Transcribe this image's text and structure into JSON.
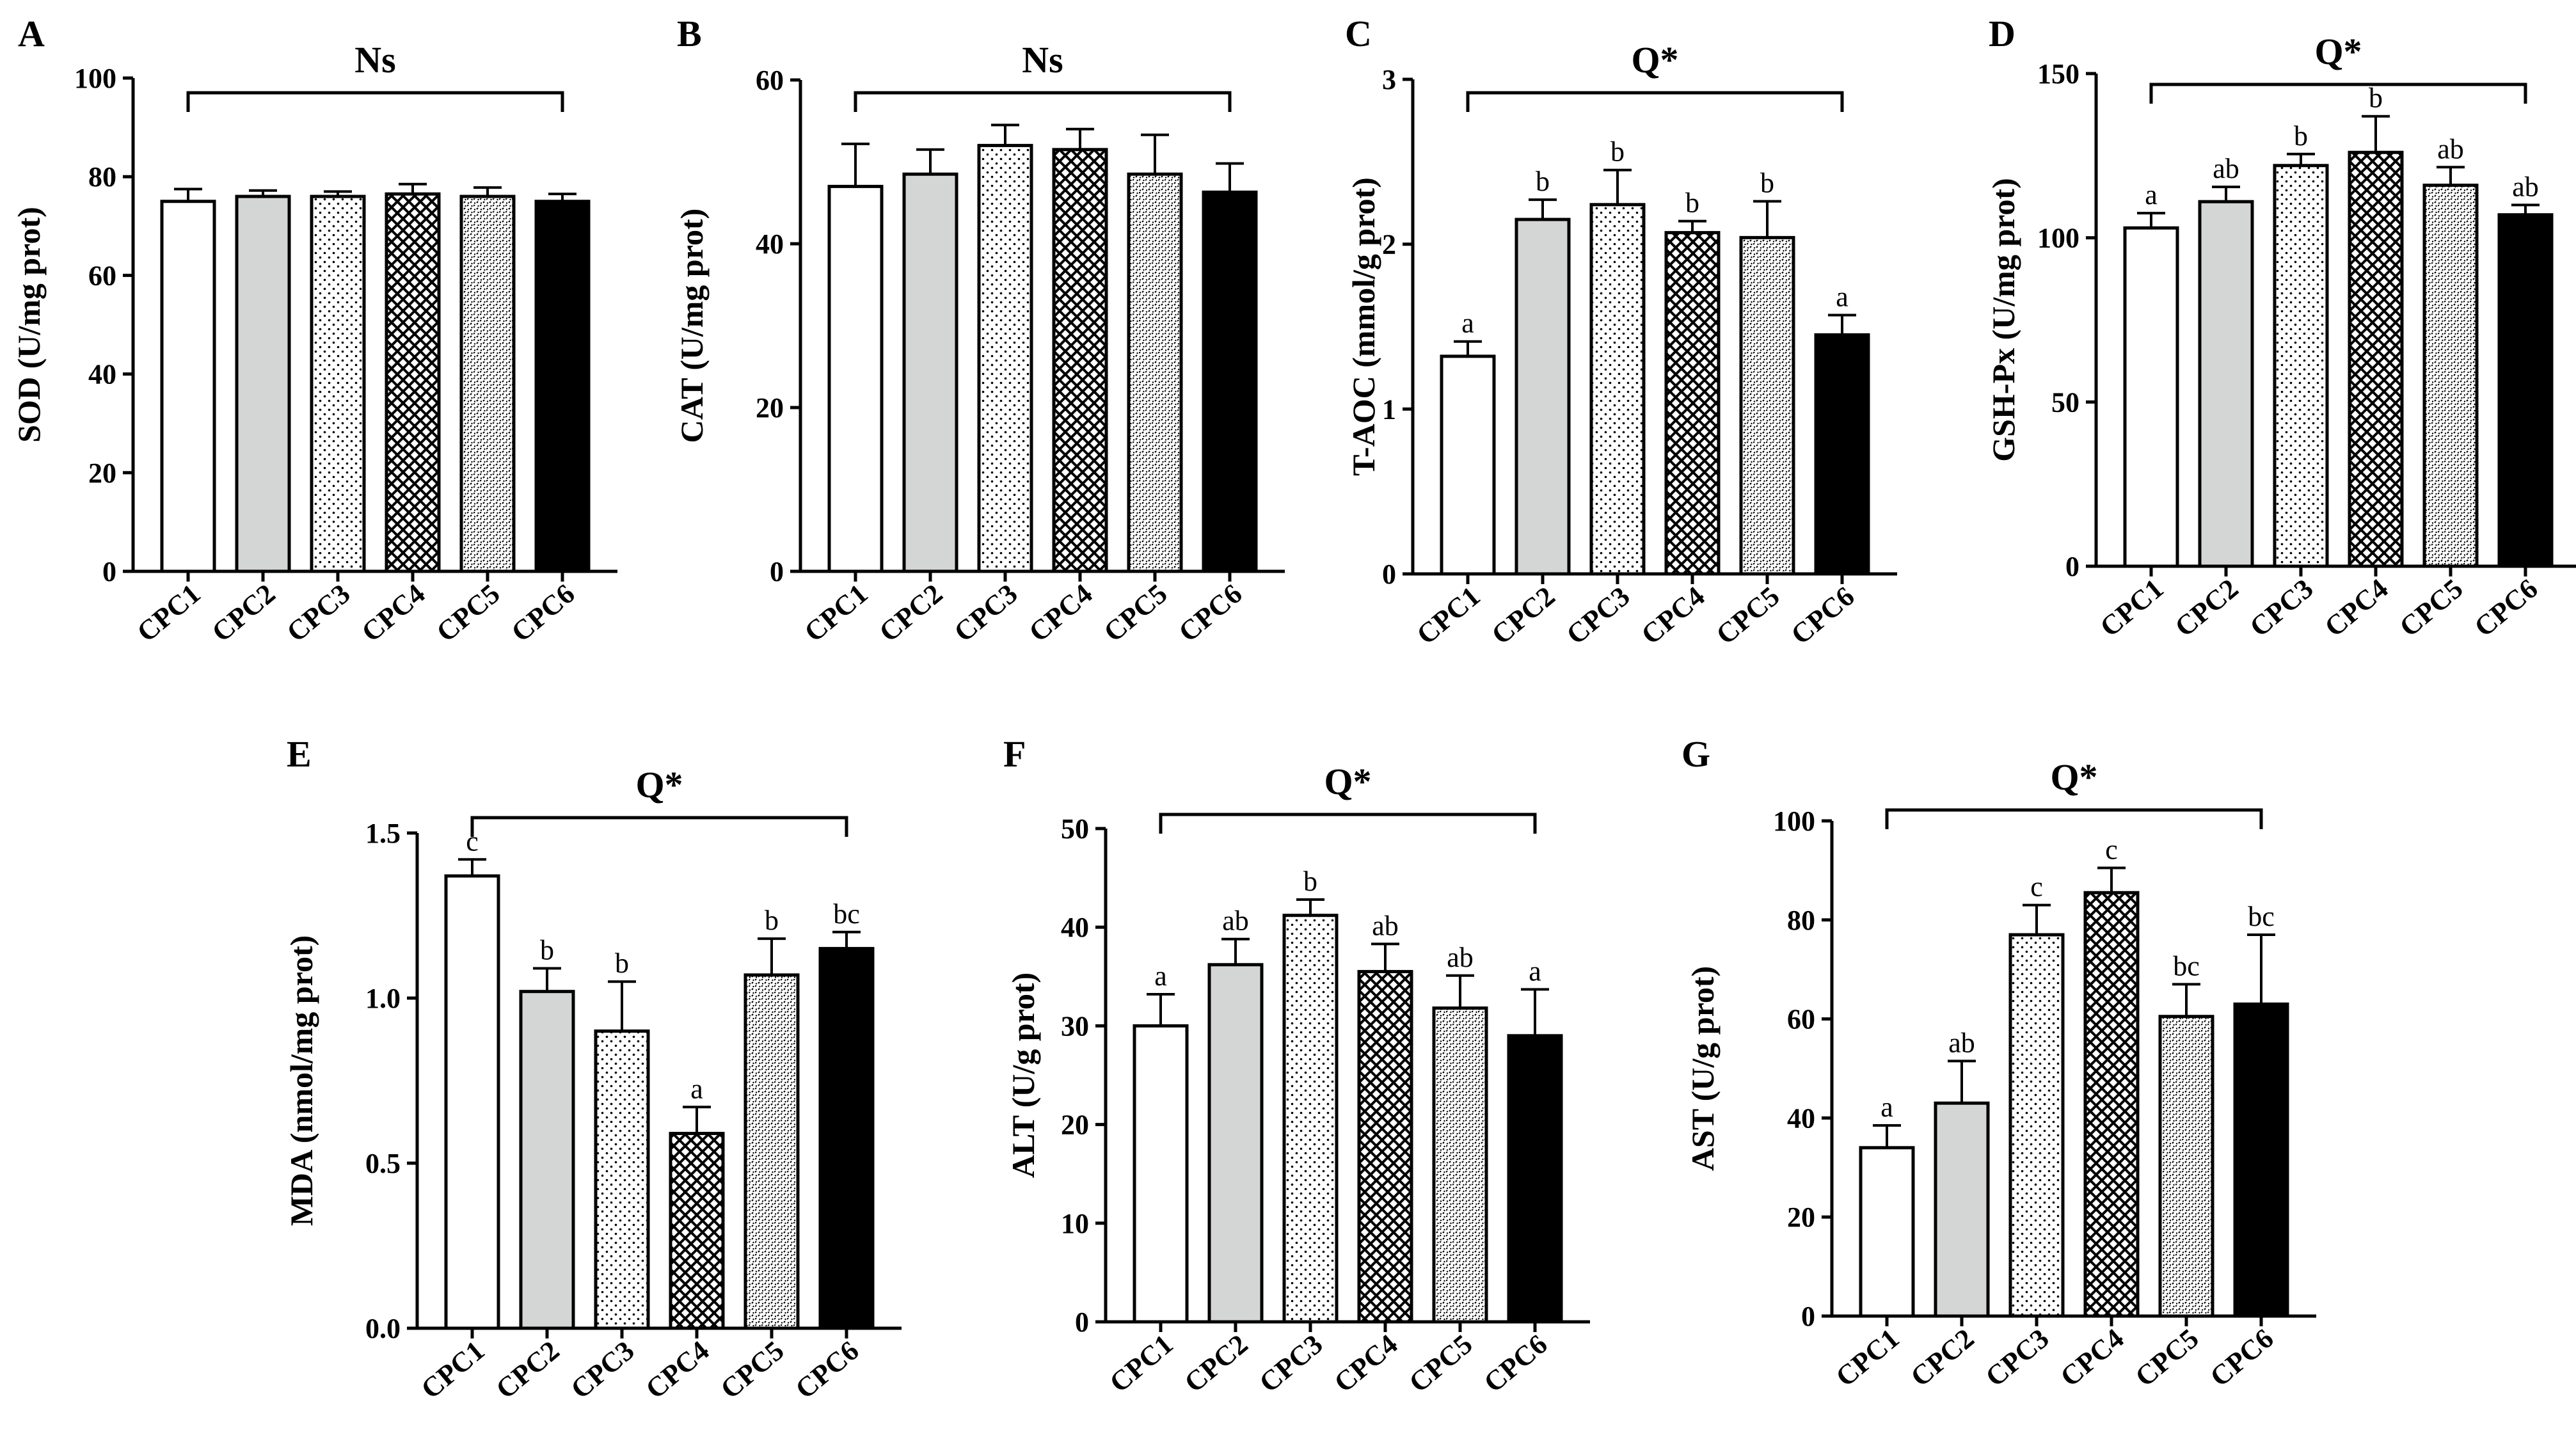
{
  "categories": [
    "CPC1",
    "CPC2",
    "CPC3",
    "CPC4",
    "CPC5",
    "CPC6"
  ],
  "bar_patterns": [
    "white",
    "gray",
    "dots",
    "crosshatch",
    "fine-dots",
    "black"
  ],
  "colors": {
    "gray_fill": "#d4d6d5",
    "ink": "#000000",
    "background": "#ffffff"
  },
  "chart_data": [
    {
      "type": "bar",
      "panel": "A",
      "ylabel": "SOD (U/mg prot)",
      "significance": "Ns",
      "ylim": [
        0,
        100
      ],
      "yticks": [
        0,
        20,
        40,
        60,
        80,
        100
      ],
      "tick_labels": [
        "0",
        "20",
        "40",
        "60",
        "80",
        "100"
      ],
      "categories": [
        "CPC1",
        "CPC2",
        "CPC3",
        "CPC4",
        "CPC5",
        "CPC6"
      ],
      "values": [
        75,
        76,
        76,
        76.5,
        76,
        75
      ],
      "errors": [
        2.5,
        1.2,
        1.0,
        2.0,
        1.8,
        1.5
      ],
      "letters": [
        "",
        "",
        "",
        "",
        "",
        ""
      ]
    },
    {
      "type": "bar",
      "panel": "B",
      "ylabel": "CAT (U/mg prot)",
      "significance": "Ns",
      "ylim": [
        0,
        60
      ],
      "yticks": [
        0,
        20,
        40,
        60
      ],
      "tick_labels": [
        "0",
        "20",
        "40",
        "60"
      ],
      "categories": [
        "CPC1",
        "CPC2",
        "CPC3",
        "CPC4",
        "CPC5",
        "CPC6"
      ],
      "values": [
        47,
        48.5,
        52,
        51.5,
        48.5,
        46.3
      ],
      "errors": [
        5.2,
        3.0,
        2.5,
        2.5,
        4.8,
        3.5
      ],
      "letters": [
        "",
        "",
        "",
        "",
        "",
        ""
      ]
    },
    {
      "type": "bar",
      "panel": "C",
      "ylabel": "T-AOC (mmol/g prot)",
      "significance": "Q*",
      "ylim": [
        0,
        3
      ],
      "yticks": [
        0,
        1,
        2,
        3
      ],
      "tick_labels": [
        "0",
        "1",
        "2",
        "3"
      ],
      "categories": [
        "CPC1",
        "CPC2",
        "CPC3",
        "CPC4",
        "CPC5",
        "CPC6"
      ],
      "values": [
        1.32,
        2.15,
        2.24,
        2.07,
        2.04,
        1.45
      ],
      "errors": [
        0.09,
        0.12,
        0.21,
        0.07,
        0.22,
        0.12
      ],
      "letters": [
        "a",
        "b",
        "b",
        "b",
        "b",
        "a"
      ]
    },
    {
      "type": "bar",
      "panel": "D",
      "ylabel": "GSH-Px (U/mg prot)",
      "significance": "Q*",
      "ylim": [
        0,
        150
      ],
      "yticks": [
        0,
        50,
        100,
        150
      ],
      "tick_labels": [
        "0",
        "50",
        "100",
        "150"
      ],
      "categories": [
        "CPC1",
        "CPC2",
        "CPC3",
        "CPC4",
        "CPC5",
        "CPC6"
      ],
      "values": [
        103,
        111,
        122,
        126,
        116,
        107
      ],
      "errors": [
        4.5,
        4.5,
        3.5,
        11,
        5.5,
        3
      ],
      "letters": [
        "a",
        "ab",
        "b",
        "b",
        "ab",
        "ab"
      ]
    },
    {
      "type": "bar",
      "panel": "E",
      "ylabel": "MDA (nmol/mg prot)",
      "significance": "Q*",
      "ylim": [
        0,
        1.5
      ],
      "yticks": [
        0,
        0.5,
        1.0,
        1.5
      ],
      "tick_labels": [
        "0.0",
        "0.5",
        "1.0",
        "1.5"
      ],
      "categories": [
        "CPC1",
        "CPC2",
        "CPC3",
        "CPC4",
        "CPC5",
        "CPC6"
      ],
      "values": [
        1.37,
        1.02,
        0.9,
        0.59,
        1.07,
        1.15
      ],
      "errors": [
        0.05,
        0.07,
        0.15,
        0.08,
        0.11,
        0.05
      ],
      "letters": [
        "c",
        "b",
        "b",
        "a",
        "b",
        "bc"
      ]
    },
    {
      "type": "bar",
      "panel": "F",
      "ylabel": "ALT (U/g prot)",
      "significance": "Q*",
      "ylim": [
        0,
        50
      ],
      "yticks": [
        0,
        10,
        20,
        30,
        40,
        50
      ],
      "tick_labels": [
        "0",
        "10",
        "20",
        "30",
        "40",
        "50"
      ],
      "categories": [
        "CPC1",
        "CPC2",
        "CPC3",
        "CPC4",
        "CPC5",
        "CPC6"
      ],
      "values": [
        30,
        36.2,
        41.2,
        35.5,
        31.8,
        29
      ],
      "errors": [
        3.2,
        2.6,
        1.6,
        2.8,
        3.3,
        4.7
      ],
      "letters": [
        "a",
        "ab",
        "b",
        "ab",
        "ab",
        "a"
      ]
    },
    {
      "type": "bar",
      "panel": "G",
      "ylabel": "AST (U/g prot)",
      "significance": "Q*",
      "ylim": [
        0,
        100
      ],
      "yticks": [
        0,
        20,
        40,
        60,
        80,
        100
      ],
      "tick_labels": [
        "0",
        "20",
        "40",
        "60",
        "80",
        "100"
      ],
      "categories": [
        "CPC1",
        "CPC2",
        "CPC3",
        "CPC4",
        "CPC5",
        "CPC6"
      ],
      "values": [
        34,
        43,
        77,
        85.5,
        60.5,
        63
      ],
      "errors": [
        4.5,
        8.5,
        6,
        5,
        6.5,
        14
      ],
      "letters": [
        "a",
        "ab",
        "c",
        "c",
        "bc",
        "bc"
      ]
    }
  ]
}
